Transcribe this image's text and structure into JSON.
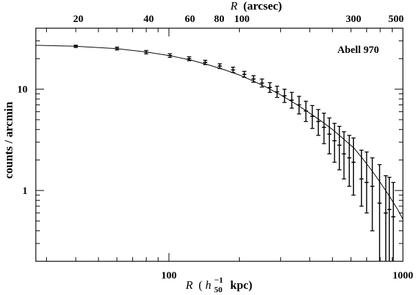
{
  "chart_data": {
    "type": "scatter",
    "title": "",
    "annotation": "Abell 970",
    "xscale": "log",
    "yscale": "log",
    "xlim": [
      27,
      1000
    ],
    "ylim": [
      0.2,
      40
    ],
    "xlabel": {
      "var": "R",
      "open": "(",
      "h": "h",
      "sub": "50",
      "sup": "−1",
      "unit": "kpc)"
    },
    "ylabel": "counts / arcmin",
    "top_label": {
      "var": "R",
      "unit": "(arcsec)"
    },
    "x_tick_labels": [
      {
        "value": 100,
        "label": "100"
      },
      {
        "value": 1000,
        "label": "1000"
      }
    ],
    "y_tick_labels": [
      {
        "value": 1,
        "label": "1"
      },
      {
        "value": 10,
        "label": "10"
      }
    ],
    "top_tick_labels": [
      {
        "value": 20,
        "label": "20"
      },
      {
        "value": 40,
        "label": "40"
      },
      {
        "value": 60,
        "label": "60"
      },
      {
        "value": 80,
        "label": "80"
      },
      {
        "value": 100,
        "label": "100"
      },
      {
        "value": 300,
        "label": "300"
      },
      {
        "value": 500,
        "label": "500"
      }
    ],
    "points": [
      {
        "x": 40,
        "y": 26.5,
        "ylo": 25.8,
        "yhi": 27.2
      },
      {
        "x": 60,
        "y": 25.2,
        "ylo": 24.4,
        "yhi": 26.0
      },
      {
        "x": 80,
        "y": 23.2,
        "ylo": 22.3,
        "yhi": 24.1
      },
      {
        "x": 101,
        "y": 21.5,
        "ylo": 20.6,
        "yhi": 22.4
      },
      {
        "x": 122,
        "y": 20.0,
        "ylo": 19.1,
        "yhi": 20.9
      },
      {
        "x": 143,
        "y": 18.4,
        "ylo": 17.5,
        "yhi": 19.3
      },
      {
        "x": 165,
        "y": 16.9,
        "ylo": 16.0,
        "yhi": 17.8
      },
      {
        "x": 188,
        "y": 15.5,
        "ylo": 14.6,
        "yhi": 16.5
      },
      {
        "x": 210,
        "y": 14.0,
        "ylo": 13.1,
        "yhi": 15.0
      },
      {
        "x": 230,
        "y": 12.6,
        "ylo": 11.7,
        "yhi": 13.6
      },
      {
        "x": 250,
        "y": 11.5,
        "ylo": 10.5,
        "yhi": 12.6
      },
      {
        "x": 270,
        "y": 10.4,
        "ylo": 9.3,
        "yhi": 11.6
      },
      {
        "x": 290,
        "y": 9.4,
        "ylo": 8.3,
        "yhi": 10.7
      },
      {
        "x": 312,
        "y": 8.6,
        "ylo": 7.4,
        "yhi": 10.0
      },
      {
        "x": 335,
        "y": 7.8,
        "ylo": 6.5,
        "yhi": 9.3
      },
      {
        "x": 360,
        "y": 7.0,
        "ylo": 5.7,
        "yhi": 8.5
      },
      {
        "x": 385,
        "y": 6.1,
        "ylo": 4.8,
        "yhi": 7.6
      },
      {
        "x": 410,
        "y": 5.4,
        "ylo": 4.1,
        "yhi": 6.9
      },
      {
        "x": 435,
        "y": 4.8,
        "ylo": 3.5,
        "yhi": 6.3
      },
      {
        "x": 460,
        "y": 4.2,
        "ylo": 2.9,
        "yhi": 5.8
      },
      {
        "x": 485,
        "y": 3.6,
        "ylo": 2.3,
        "yhi": 5.2
      },
      {
        "x": 510,
        "y": 3.1,
        "ylo": 1.9,
        "yhi": 4.6
      },
      {
        "x": 535,
        "y": 2.8,
        "ylo": 1.6,
        "yhi": 4.3
      },
      {
        "x": 560,
        "y": 2.3,
        "ylo": 1.3,
        "yhi": 3.8
      },
      {
        "x": 590,
        "y": 2.1,
        "ylo": 1.1,
        "yhi": 3.5
      },
      {
        "x": 615,
        "y": 1.9,
        "ylo": 0.9,
        "yhi": 3.3
      },
      {
        "x": 665,
        "y": 1.3,
        "ylo": 0.7,
        "yhi": 2.5
      },
      {
        "x": 700,
        "y": 1.2,
        "ylo": 0.6,
        "yhi": 2.4
      },
      {
        "x": 740,
        "y": 1.1,
        "ylo": 0.4,
        "yhi": 2.1
      },
      {
        "x": 795,
        "y": 0.75,
        "ylo": 0.2,
        "yhi": 1.8
      },
      {
        "x": 845,
        "y": 0.6,
        "ylo": 0.2,
        "yhi": 1.4
      },
      {
        "x": 875,
        "y": 0.65,
        "ylo": 0.2,
        "yhi": 1.35
      },
      {
        "x": 910,
        "y": 0.55,
        "ylo": 0.2,
        "yhi": 1.2
      }
    ],
    "model_curve": {
      "x": [
        27,
        40,
        60,
        80,
        100,
        125,
        150,
        175,
        200,
        230,
        260,
        300,
        350,
        400,
        450,
        500,
        560,
        620,
        680,
        740,
        800,
        870,
        950,
        1000
      ],
      "y": [
        27.1,
        26.5,
        25.1,
        23.3,
        21.5,
        19.3,
        17.2,
        15.4,
        13.8,
        12.0,
        10.5,
        8.8,
        7.1,
        5.8,
        4.8,
        4.0,
        3.2,
        2.6,
        2.0,
        1.55,
        1.2,
        0.9,
        0.65,
        0.52
      ]
    }
  }
}
